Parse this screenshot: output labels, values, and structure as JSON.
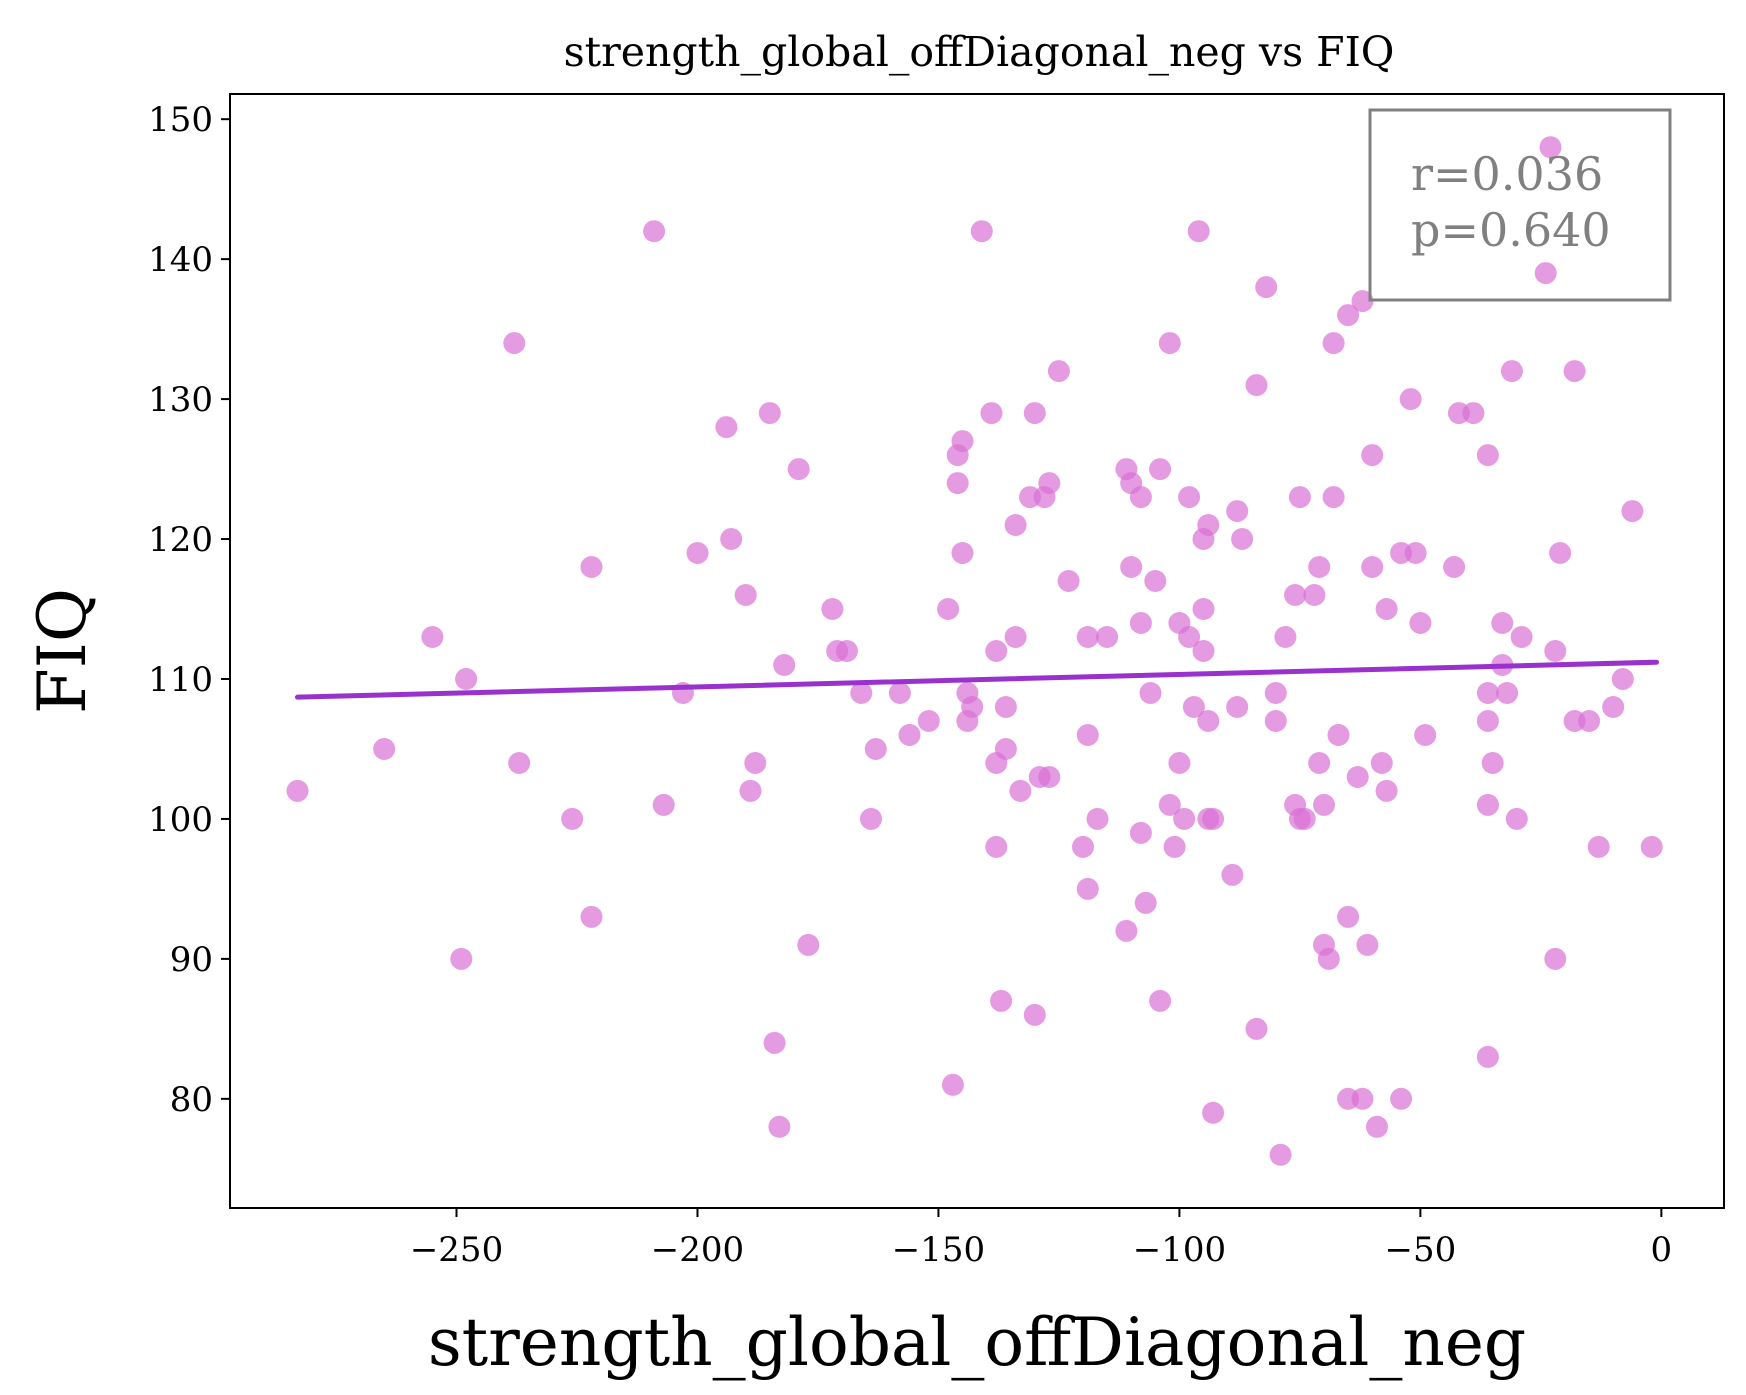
{
  "chart_data": {
    "type": "scatter",
    "title": "strength_global_offDiagonal_neg vs FIQ",
    "xlabel": "strength_global_offDiagonal_neg",
    "ylabel": "FIQ",
    "xlim": [
      -297,
      13
    ],
    "ylim": [
      72.2,
      151.8
    ],
    "xticks": [
      -250,
      -200,
      -150,
      -100,
      -50,
      0
    ],
    "xtick_labels": [
      "−250",
      "−200",
      "−150",
      "−100",
      "−50",
      "0"
    ],
    "yticks": [
      80,
      90,
      100,
      110,
      120,
      130,
      140,
      150
    ],
    "ytick_labels": [
      "80",
      "90",
      "100",
      "110",
      "120",
      "130",
      "140",
      "150"
    ],
    "grid": false,
    "legend": false,
    "colors": {
      "points": "#da70d6",
      "fit_line": "#9932cc",
      "stats_box": "#808080"
    },
    "stats_annotation": {
      "lines": [
        "r=0.036",
        "p=0.640"
      ],
      "position": "top-right"
    },
    "fit_line": {
      "x": [
        -283,
        -1
      ],
      "y": [
        108.7,
        111.2
      ]
    },
    "points": [
      [
        -283,
        102
      ],
      [
        -265,
        105
      ],
      [
        -255,
        113
      ],
      [
        -248,
        110
      ],
      [
        -249,
        90
      ],
      [
        -238,
        134
      ],
      [
        -237,
        104
      ],
      [
        -226,
        100
      ],
      [
        -222,
        118
      ],
      [
        -222,
        93
      ],
      [
        -209,
        142
      ],
      [
        -207,
        101
      ],
      [
        -203,
        109
      ],
      [
        -200,
        119
      ],
      [
        -194,
        128
      ],
      [
        -193,
        120
      ],
      [
        -190,
        116
      ],
      [
        -189,
        102
      ],
      [
        -188,
        104
      ],
      [
        -185,
        129
      ],
      [
        -184,
        84
      ],
      [
        -183,
        78
      ],
      [
        -182,
        111
      ],
      [
        -179,
        125
      ],
      [
        -177,
        91
      ],
      [
        -172,
        115
      ],
      [
        -171,
        112
      ],
      [
        -169,
        112
      ],
      [
        -166,
        109
      ],
      [
        -164,
        100
      ],
      [
        -163,
        105
      ],
      [
        -158,
        109
      ],
      [
        -156,
        106
      ],
      [
        -152,
        107
      ],
      [
        -148,
        115
      ],
      [
        -147,
        81
      ],
      [
        -146,
        126
      ],
      [
        -146,
        124
      ],
      [
        -145,
        127
      ],
      [
        -145,
        119
      ],
      [
        -144,
        109
      ],
      [
        -144,
        107
      ],
      [
        -143,
        108
      ],
      [
        -141,
        142
      ],
      [
        -139,
        129
      ],
      [
        -138,
        112
      ],
      [
        -138,
        104
      ],
      [
        -138,
        98
      ],
      [
        -137,
        87
      ],
      [
        -136,
        108
      ],
      [
        -136,
        105
      ],
      [
        -134,
        113
      ],
      [
        -134,
        121
      ],
      [
        -133,
        102
      ],
      [
        -131,
        123
      ],
      [
        -130,
        129
      ],
      [
        -130,
        86
      ],
      [
        -129,
        103
      ],
      [
        -128,
        123
      ],
      [
        -127,
        124
      ],
      [
        -127,
        103
      ],
      [
        -125,
        132
      ],
      [
        -123,
        117
      ],
      [
        -120,
        98
      ],
      [
        -119,
        106
      ],
      [
        -119,
        113
      ],
      [
        -119,
        95
      ],
      [
        -117,
        100
      ],
      [
        -115,
        113
      ],
      [
        -111,
        125
      ],
      [
        -111,
        92
      ],
      [
        -110,
        124
      ],
      [
        -110,
        118
      ],
      [
        -108,
        123
      ],
      [
        -108,
        114
      ],
      [
        -108,
        99
      ],
      [
        -107,
        94
      ],
      [
        -106,
        109
      ],
      [
        -105,
        117
      ],
      [
        -104,
        125
      ],
      [
        -104,
        87
      ],
      [
        -102,
        134
      ],
      [
        -102,
        101
      ],
      [
        -101,
        98
      ],
      [
        -100,
        114
      ],
      [
        -100,
        104
      ],
      [
        -99,
        100
      ],
      [
        -98,
        123
      ],
      [
        -98,
        113
      ],
      [
        -97,
        108
      ],
      [
        -96,
        142
      ],
      [
        -95,
        115
      ],
      [
        -95,
        112
      ],
      [
        -95,
        120
      ],
      [
        -94,
        107
      ],
      [
        -94,
        121
      ],
      [
        -94,
        100
      ],
      [
        -93,
        100
      ],
      [
        -93,
        79
      ],
      [
        -89,
        96
      ],
      [
        -88,
        108
      ],
      [
        -88,
        122
      ],
      [
        -87,
        120
      ],
      [
        -84,
        131
      ],
      [
        -84,
        85
      ],
      [
        -82,
        138
      ],
      [
        -80,
        109
      ],
      [
        -80,
        107
      ],
      [
        -79,
        76
      ],
      [
        -78,
        113
      ],
      [
        -76,
        116
      ],
      [
        -76,
        101
      ],
      [
        -75,
        123
      ],
      [
        -75,
        100
      ],
      [
        -74,
        100
      ],
      [
        -72,
        116
      ],
      [
        -71,
        118
      ],
      [
        -71,
        104
      ],
      [
        -70,
        101
      ],
      [
        -70,
        91
      ],
      [
        -69,
        90
      ],
      [
        -68,
        134
      ],
      [
        -68,
        123
      ],
      [
        -67,
        106
      ],
      [
        -65,
        136
      ],
      [
        -65,
        93
      ],
      [
        -65,
        80
      ],
      [
        -63,
        103
      ],
      [
        -62,
        137
      ],
      [
        -62,
        80
      ],
      [
        -61,
        91
      ],
      [
        -60,
        126
      ],
      [
        -60,
        118
      ],
      [
        -59,
        78
      ],
      [
        -58,
        104
      ],
      [
        -57,
        102
      ],
      [
        -57,
        115
      ],
      [
        -54,
        119
      ],
      [
        -54,
        80
      ],
      [
        -52,
        130
      ],
      [
        -51,
        119
      ],
      [
        -50,
        114
      ],
      [
        -49,
        106
      ],
      [
        -43,
        118
      ],
      [
        -42,
        129
      ],
      [
        -39,
        129
      ],
      [
        -36,
        109
      ],
      [
        -36,
        126
      ],
      [
        -36,
        107
      ],
      [
        -36,
        101
      ],
      [
        -35,
        104
      ],
      [
        -36,
        83
      ],
      [
        -33,
        114
      ],
      [
        -33,
        111
      ],
      [
        -32,
        109
      ],
      [
        -31,
        132
      ],
      [
        -30,
        100
      ],
      [
        -29,
        113
      ],
      [
        -23,
        148
      ],
      [
        -24,
        139
      ],
      [
        -22,
        112
      ],
      [
        -21,
        119
      ],
      [
        -22,
        90
      ],
      [
        -18,
        132
      ],
      [
        -18,
        107
      ],
      [
        -15,
        107
      ],
      [
        -13,
        98
      ],
      [
        -10,
        108
      ],
      [
        -8,
        110
      ],
      [
        -6,
        122
      ],
      [
        -2,
        98
      ]
    ]
  }
}
